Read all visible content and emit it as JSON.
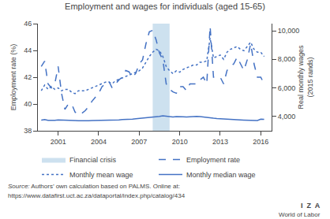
{
  "chart_data": {
    "type": "line",
    "title": "Employment and wages for individuals (aged 15-65)",
    "ylabel": "Employment rate (%)",
    "y2label": "Real monthly wages\n(2015 rands)",
    "xlim": [
      1999.5,
      2016.8
    ],
    "xticks": [
      2001,
      2004,
      2007,
      2010,
      2013,
      2016
    ],
    "ylim": [
      38,
      46
    ],
    "yticks": [
      38,
      40,
      42,
      44,
      46
    ],
    "y2lim": [
      3000,
      10500
    ],
    "y2ticks": [
      {
        "value": 4000,
        "label": "4,000"
      },
      {
        "value": 6000,
        "label": "6,000"
      },
      {
        "value": 8000,
        "label": "8,000"
      },
      {
        "value": 10000,
        "label": "10,000"
      }
    ],
    "grid": false,
    "legend": "bottom",
    "spans": [
      {
        "name": "Financial crisis",
        "start": 2008.0,
        "end": 2009.25,
        "color": "#b8d4e8"
      }
    ],
    "x": [
      1999.75,
      2000.0,
      2000.25,
      2000.5,
      2000.75,
      2001.0,
      2001.25,
      2001.5,
      2001.75,
      2002.0,
      2002.25,
      2002.5,
      2002.75,
      2003.0,
      2003.25,
      2003.5,
      2003.75,
      2004.0,
      2004.25,
      2004.5,
      2004.75,
      2005.0,
      2005.25,
      2005.5,
      2005.75,
      2006.0,
      2006.25,
      2006.5,
      2006.75,
      2007.0,
      2007.25,
      2007.5,
      2007.75,
      2008.0,
      2008.25,
      2008.5,
      2008.75,
      2009.0,
      2009.25,
      2009.5,
      2009.75,
      2010.0,
      2010.25,
      2010.5,
      2010.75,
      2011.0,
      2011.25,
      2011.5,
      2011.75,
      2012.0,
      2012.25,
      2012.5,
      2012.75,
      2013.0,
      2013.25,
      2013.5,
      2013.75,
      2014.0,
      2014.25,
      2014.5,
      2014.75,
      2015.0,
      2015.25,
      2015.5,
      2015.75,
      2016.0,
      2016.25
    ],
    "series": [
      {
        "name": "Employment rate",
        "color": "#4472C4",
        "line_style": "dashed",
        "axis": "y",
        "values": [
          42.8,
          43.2,
          41.5,
          41.2,
          41.5,
          42.8,
          40.8,
          39.6,
          40.0,
          40.0,
          39.4,
          39.2,
          39.3,
          39.5,
          39.8,
          40.2,
          40.5,
          40.8,
          41.3,
          41.5,
          41.7,
          41.2,
          41.5,
          41.8,
          42.0,
          42.5,
          42.4,
          42.0,
          42.3,
          43.0,
          43.3,
          44.5,
          45.4,
          45.5,
          44.8,
          43.8,
          43.3,
          41.5,
          41.1,
          40.9,
          40.8,
          41.3,
          41.3,
          41.0,
          41.5,
          41.5,
          41.5,
          41.8,
          42.0,
          41.5,
          45.8,
          42.0,
          42.0,
          42.0,
          41.5,
          42.5,
          42.8,
          43.0,
          43.5,
          43.0,
          42.5,
          43.3,
          44.5,
          43.0,
          42.0,
          42.0,
          41.5
        ]
      },
      {
        "name": "Monthly mean wage",
        "color": "#4472C4",
        "line_style": "dotted",
        "axis": "y2",
        "values": [
          5800,
          6200,
          5900,
          6100,
          5900,
          6000,
          5800,
          5900,
          5900,
          5700,
          5600,
          5800,
          5800,
          5800,
          5900,
          6000,
          6100,
          6200,
          6300,
          6400,
          6400,
          6300,
          6500,
          6600,
          6700,
          6800,
          6900,
          7000,
          7100,
          7200,
          7400,
          7800,
          8200,
          8500,
          8700,
          8600,
          8200,
          7500,
          7200,
          7000,
          7200,
          7100,
          7300,
          7400,
          7500,
          7600,
          7600,
          7800,
          7800,
          7900,
          9500,
          8100,
          8200,
          8300,
          8000,
          8500,
          8700,
          8800,
          8900,
          8700,
          8600,
          8900,
          9200,
          8700,
          8500,
          8500,
          8200
        ]
      },
      {
        "name": "Monthly median wage",
        "color": "#4472C4",
        "line_style": "solid",
        "axis": "y2",
        "values": [
          3750,
          3780,
          3730,
          3720,
          3730,
          3760,
          3760,
          3750,
          3740,
          3730,
          3720,
          3710,
          3700,
          3700,
          3710,
          3720,
          3720,
          3730,
          3740,
          3740,
          3750,
          3760,
          3750,
          3760,
          3780,
          3780,
          3800,
          3820,
          3840,
          3860,
          3900,
          3920,
          3930,
          3940,
          4000,
          4010,
          4050,
          4020,
          4000,
          3960,
          3990,
          4000,
          3980,
          3970,
          3990,
          4000,
          4000,
          3990,
          3960,
          3900,
          3870,
          3880,
          3860,
          3840,
          3820,
          3810,
          3790,
          3780,
          3760,
          3760,
          3750,
          3740,
          3730,
          3720,
          3720,
          3810,
          3800
        ]
      }
    ],
    "annotations": [
      "Source:",
      " Authors’ own calculation based on PALMS. Online at:",
      "https://www.datafirst.uct.ac.za/dataportal/index.php/catalog/434",
      "I  Z  A",
      "World of Labor"
    ]
  }
}
